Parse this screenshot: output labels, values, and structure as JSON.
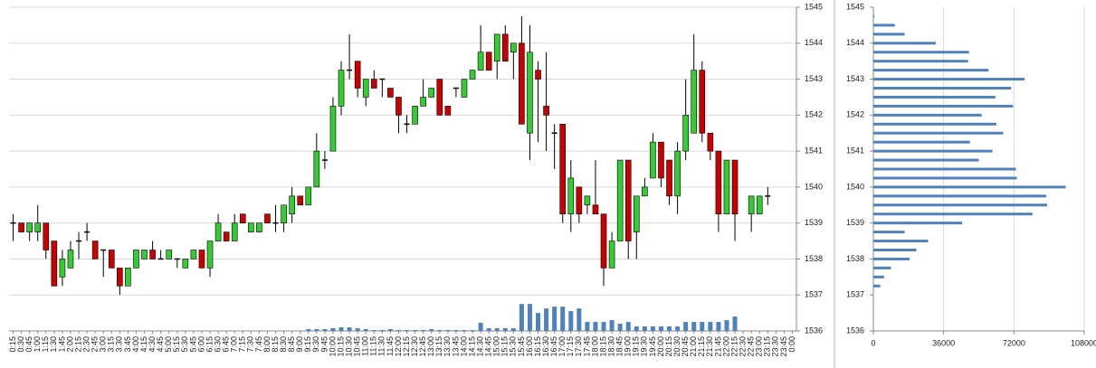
{
  "chart_data": [
    {
      "type": "candlestick",
      "categories": [
        "0:15",
        "0:30",
        "0:45",
        "1:00",
        "1:15",
        "1:30",
        "1:45",
        "2:00",
        "2:15",
        "2:30",
        "2:45",
        "3:00",
        "3:15",
        "3:30",
        "3:45",
        "4:00",
        "4:15",
        "4:30",
        "4:45",
        "5:00",
        "5:15",
        "5:30",
        "5:45",
        "6:00",
        "6:15",
        "6:30",
        "6:45",
        "7:00",
        "7:15",
        "7:30",
        "7:45",
        "8:00",
        "8:15",
        "8:30",
        "8:45",
        "9:00",
        "9:15",
        "9:30",
        "9:45",
        "10:00",
        "10:15",
        "10:30",
        "10:45",
        "11:00",
        "11:15",
        "11:30",
        "11:45",
        "12:00",
        "12:15",
        "12:30",
        "12:45",
        "13:00",
        "13:15",
        "13:30",
        "13:45",
        "14:00",
        "14:15",
        "14:30",
        "14:45",
        "15:00",
        "15:15",
        "15:30",
        "15:45",
        "16:00",
        "16:15",
        "16:30",
        "16:45",
        "17:00",
        "17:15",
        "17:30",
        "17:45",
        "18:00",
        "18:15",
        "18:30",
        "18:45",
        "19:00",
        "19:15",
        "19:30",
        "19:45",
        "20:00",
        "20:15",
        "20:30",
        "20:45",
        "21:00",
        "21:15",
        "21:30",
        "21:45",
        "22:00",
        "22:15",
        "22:30",
        "22:45",
        "23:00",
        "23:15",
        "23:30",
        "23:45",
        "0:00"
      ],
      "open": [
        1539,
        1539,
        1538.75,
        1538.75,
        1539,
        1538.5,
        1537.5,
        1537.75,
        1538.5,
        1538.75,
        1538.5,
        1538.25,
        1538.25,
        1537.75,
        1537.25,
        1537.75,
        1538,
        1538.25,
        1538,
        1538,
        1538,
        1537.75,
        1538,
        1538.25,
        1537.75,
        1538.5,
        1538.75,
        1538.5,
        1539.25,
        1538.75,
        1538.75,
        1539.25,
        1539,
        1539,
        1539.25,
        1539.75,
        1539.5,
        1540,
        1540.75,
        1541,
        1542.25,
        1543.25,
        1543.5,
        1542.5,
        1543,
        1543,
        1542.75,
        1542.5,
        1541.75,
        1541.75,
        1542.25,
        1542.5,
        1543,
        1542.25,
        1542.75,
        1542.5,
        1543,
        1543.25,
        1543.75,
        1543.5,
        1544.25,
        1543.75,
        1544,
        1541.5,
        1543.25,
        1542.25,
        1541.5,
        1541.75,
        1539.25,
        1540,
        1539.5,
        1539.5,
        1539.25,
        1537.75,
        1538.5,
        1540.75,
        1538.75,
        1539.75,
        1540.25,
        1541.25,
        1540.75,
        1539.75,
        1541,
        1541.5,
        1543.25,
        1541.5,
        1541,
        1539.25,
        1540.75,
        null,
        1539.25,
        1539.25,
        1539.75,
        null,
        null,
        null
      ],
      "high": [
        1539.25,
        1539,
        1539,
        1539.5,
        1539,
        1538.5,
        1538.25,
        1538.5,
        1538.75,
        1539,
        1538.5,
        1538.25,
        1538.25,
        1537.75,
        1537.75,
        1538.25,
        1538.25,
        1538.5,
        1538.25,
        1538.25,
        1538,
        1538,
        1538.25,
        1538.25,
        1538.5,
        1539.25,
        1538.75,
        1539.25,
        1539.25,
        1539,
        1539,
        1539.25,
        1539.5,
        1539.5,
        1540,
        1539.75,
        1540,
        1541.5,
        1541,
        1542.5,
        1543.5,
        1544.25,
        1543.5,
        1543,
        1543.25,
        1543,
        1542.75,
        1542.5,
        1542,
        1542.25,
        1543,
        1542.75,
        1543,
        1542.25,
        1542.75,
        1543,
        1543.25,
        1544.5,
        1543.75,
        1544.25,
        1544.5,
        1544,
        1544.75,
        1544.5,
        1543.5,
        1543.75,
        1541.75,
        1541.75,
        1540.75,
        1540,
        1539.75,
        1540.75,
        1539.25,
        1538.75,
        1540.75,
        1540.75,
        1539.75,
        1540.25,
        1541.5,
        1541.25,
        1540.75,
        1541.25,
        1543,
        1544.25,
        1543.5,
        1541.5,
        1541,
        1540.75,
        1540.75,
        null,
        1539.75,
        1539.75,
        1540,
        null,
        null,
        null
      ],
      "low": [
        1538.5,
        1538.75,
        1538.5,
        1538.5,
        1538,
        1537.25,
        1537.25,
        1537.75,
        1538,
        1538.5,
        1538,
        1537.5,
        1537.75,
        1537,
        1537.25,
        1537.75,
        1538,
        1538,
        1538,
        1538,
        1537.75,
        1537.75,
        1538,
        1537.75,
        1537.5,
        1538.5,
        1538.5,
        1538.5,
        1539,
        1538.75,
        1538.75,
        1539,
        1538.75,
        1538.75,
        1539,
        1539.5,
        1539.5,
        1540,
        1540.5,
        1541,
        1542,
        1543,
        1542.5,
        1542.25,
        1542.75,
        1542.5,
        1542.5,
        1541.5,
        1541.5,
        1541.75,
        1542.25,
        1542.5,
        1542,
        1542,
        1542.5,
        1542.5,
        1543,
        1543.25,
        1543.25,
        1543,
        1543.5,
        1543,
        1541.75,
        1540.75,
        1541.25,
        1541,
        1540.5,
        1539,
        1538.75,
        1539,
        1539.25,
        1539.25,
        1537.25,
        1537.75,
        1538.5,
        1538,
        1538,
        1539.75,
        1540.25,
        1540,
        1539.5,
        1539.25,
        1540.75,
        1541.5,
        1541.25,
        1540.75,
        1538.75,
        1539.25,
        1538.5,
        null,
        1538.75,
        1539.25,
        1539.5,
        null,
        null,
        null
      ],
      "close": [
        1539,
        1538.75,
        1539,
        1539,
        1538.25,
        1537.25,
        1538,
        1538.25,
        1538.5,
        1538.75,
        1538,
        1538.25,
        1537.75,
        1537.25,
        1537.75,
        1538.25,
        1538.25,
        1538,
        1538,
        1538.25,
        1538,
        1538,
        1538.25,
        1537.75,
        1538.5,
        1539,
        1538.5,
        1539,
        1539,
        1539,
        1539,
        1539,
        1539,
        1539.5,
        1539.75,
        1539.5,
        1540,
        1541,
        1540.75,
        1542.25,
        1543.25,
        1543.25,
        1542.75,
        1543,
        1542.75,
        1543,
        1542.5,
        1542,
        1541.75,
        1542.25,
        1542.5,
        1542.75,
        1542,
        1542,
        1542.75,
        1543,
        1543.25,
        1543.75,
        1543.25,
        1544.25,
        1543.5,
        1544,
        1541.75,
        1543.75,
        1543,
        1542,
        1541.5,
        1539.25,
        1540.25,
        1539.25,
        1539.75,
        1539.25,
        1537.75,
        1538.5,
        1540.75,
        1538.5,
        1539.75,
        1540,
        1541.25,
        1540.25,
        1539.75,
        1541,
        1542,
        1543.25,
        1541.5,
        1541,
        1539.25,
        1540.75,
        1539.25,
        null,
        1539.75,
        1539.75,
        1539.75,
        null,
        null,
        null
      ],
      "volume": [
        0,
        0,
        0,
        0,
        0,
        0,
        0,
        0,
        0,
        0,
        0,
        0,
        0,
        0,
        0,
        0,
        0,
        0,
        0,
        0,
        0,
        0,
        0,
        0,
        0,
        0,
        0,
        0,
        0,
        0,
        0,
        0,
        0,
        0,
        0,
        0,
        0.05,
        0.05,
        0.05,
        0.075,
        0.1,
        0.1,
        0.075,
        0.05,
        0.025,
        0.025,
        0.05,
        0.025,
        0.025,
        0.025,
        0.025,
        0.05,
        0.025,
        0.025,
        0.025,
        0.025,
        0.025,
        0.225,
        0.075,
        0.075,
        0.075,
        0.075,
        0.75,
        0.75,
        0.5,
        0.625,
        0.675,
        0.675,
        0.55,
        0.625,
        0.25,
        0.25,
        0.25,
        0.3,
        0.2,
        0.25,
        0.125,
        0.125,
        0.125,
        0.125,
        0.125,
        0.125,
        0.25,
        0.25,
        0.25,
        0.25,
        0.25,
        0.3,
        0.4,
        0,
        0,
        0,
        0,
        0,
        0,
        0
      ],
      "up_color": "#33cc33",
      "down_color": "#cc0000",
      "doji_color": "#000000",
      "volume_color": "#4f81bd",
      "ylim": [
        1536,
        1545
      ],
      "yticks": [
        1536,
        1537,
        1538,
        1539,
        1540,
        1541,
        1542,
        1543,
        1544,
        1545
      ],
      "grid": true
    },
    {
      "type": "bar",
      "orientation": "horizontal",
      "y": [
        1544.75,
        1544.5,
        1544.25,
        1544,
        1543.75,
        1543.5,
        1543.25,
        1543,
        1542.75,
        1542.5,
        1542.25,
        1542,
        1541.75,
        1541.5,
        1541.25,
        1541,
        1540.75,
        1540.5,
        1540.25,
        1540,
        1539.75,
        1539.5,
        1539.25,
        1539,
        1538.75,
        1538.5,
        1538.25,
        1538,
        1537.75,
        1537.5,
        1537.25
      ],
      "values": [
        500,
        11000,
        16000,
        32000,
        49000,
        48500,
        59000,
        77500,
        70500,
        62500,
        71500,
        55500,
        63000,
        66500,
        49500,
        61000,
        54000,
        73000,
        73500,
        98500,
        88500,
        89000,
        81500,
        45500,
        16000,
        28000,
        22000,
        18500,
        9000,
        5500,
        3500
      ],
      "color": "#4f81bd",
      "xlim": [
        0,
        108000
      ],
      "xticks": [
        0,
        36000,
        72000,
        108000
      ],
      "ylim": [
        1536,
        1545
      ],
      "yticks": [
        1536,
        1537,
        1538,
        1539,
        1540,
        1541,
        1542,
        1543,
        1544,
        1545
      ],
      "grid": true
    }
  ]
}
